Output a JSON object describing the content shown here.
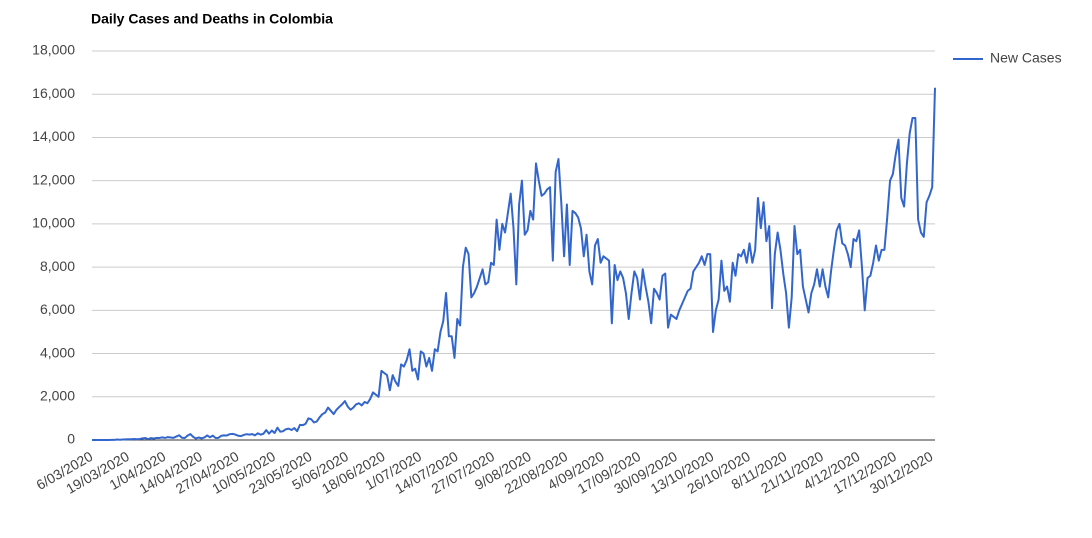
{
  "chart_data": {
    "type": "line",
    "title": "Daily Cases and Deaths in Colombia",
    "categories": [
      "6/03/2020",
      null,
      null,
      null,
      null,
      null,
      null,
      null,
      null,
      null,
      null,
      null,
      null,
      "19/03/2020",
      null,
      null,
      null,
      null,
      null,
      null,
      null,
      null,
      null,
      null,
      null,
      null,
      "1/04/2020",
      null,
      null,
      null,
      null,
      null,
      null,
      null,
      null,
      null,
      null,
      null,
      null,
      "14/04/2020",
      null,
      null,
      null,
      null,
      null,
      null,
      null,
      null,
      null,
      null,
      null,
      null,
      "27/04/2020",
      null,
      null,
      null,
      null,
      null,
      null,
      null,
      null,
      null,
      null,
      null,
      null,
      "10/05/2020",
      null,
      null,
      null,
      null,
      null,
      null,
      null,
      null,
      null,
      null,
      null,
      null,
      "23/05/2020",
      null,
      null,
      null,
      null,
      null,
      null,
      null,
      null,
      null,
      null,
      null,
      null,
      "5/06/2020",
      null,
      null,
      null,
      null,
      null,
      null,
      null,
      null,
      null,
      null,
      null,
      null,
      "18/06/2020",
      null,
      null,
      null,
      null,
      null,
      null,
      null,
      null,
      null,
      null,
      null,
      null,
      "1/07/2020",
      null,
      null,
      null,
      null,
      null,
      null,
      null,
      null,
      null,
      null,
      null,
      null,
      "14/07/2020",
      null,
      null,
      null,
      null,
      null,
      null,
      null,
      null,
      null,
      null,
      null,
      null,
      "27/07/2020",
      null,
      null,
      null,
      null,
      null,
      null,
      null,
      null,
      null,
      null,
      null,
      null,
      "9/08/2020",
      null,
      null,
      null,
      null,
      null,
      null,
      null,
      null,
      null,
      null,
      null,
      null,
      "22/08/2020",
      null,
      null,
      null,
      null,
      null,
      null,
      null,
      null,
      null,
      null,
      null,
      null,
      "4/09/2020",
      null,
      null,
      null,
      null,
      null,
      null,
      null,
      null,
      null,
      null,
      null,
      null,
      "17/09/2020",
      null,
      null,
      null,
      null,
      null,
      null,
      null,
      null,
      null,
      null,
      null,
      null,
      "30/09/2020",
      null,
      null,
      null,
      null,
      null,
      null,
      null,
      null,
      null,
      null,
      null,
      null,
      "13/10/2020",
      null,
      null,
      null,
      null,
      null,
      null,
      null,
      null,
      null,
      null,
      null,
      null,
      "26/10/2020",
      null,
      null,
      null,
      null,
      null,
      null,
      null,
      null,
      null,
      null,
      null,
      null,
      "8/11/2020",
      null,
      null,
      null,
      null,
      null,
      null,
      null,
      null,
      null,
      null,
      null,
      null,
      "21/11/2020",
      null,
      null,
      null,
      null,
      null,
      null,
      null,
      null,
      null,
      null,
      null,
      null,
      "4/12/2020",
      null,
      null,
      null,
      null,
      null,
      null,
      null,
      null,
      null,
      null,
      null,
      null,
      "17/12/2020",
      null,
      null,
      null,
      null,
      null,
      null,
      null,
      null,
      null,
      null,
      null,
      null,
      "30/12/2020",
      null
    ],
    "series": [
      {
        "name": "New Cases",
        "color": "#3366cc",
        "values": [
          1,
          0,
          0,
          0,
          0,
          3,
          3,
          6,
          7,
          21,
          11,
          22,
          28,
          37,
          34,
          48,
          36,
          45,
          74,
          92,
          36,
          88,
          69,
          96,
          95,
          120,
          96,
          134,
          118,
          100,
          159,
          221,
          106,
          94,
          203,
          274,
          145,
          71,
          116,
          76,
          117,
          213,
          126,
          200,
          94,
          101,
          196,
          213,
          208,
          269,
          283,
          252,
          199,
          180,
          235,
          269,
          250,
          273,
          215,
          311,
          249,
          289,
          458,
          295,
          437,
          324,
          572,
          384,
          406,
          499,
          525,
          462,
          552,
          409,
          700,
          686,
          750,
          1000,
          960,
          810,
          860,
          1050,
          1200,
          1270,
          1500,
          1350,
          1200,
          1400,
          1530,
          1650,
          1800,
          1550,
          1400,
          1500,
          1650,
          1700,
          1600,
          1760,
          1700,
          1900,
          2200,
          2100,
          2000,
          3200,
          3100,
          3000,
          2300,
          3000,
          2700,
          2500,
          3500,
          3400,
          3700,
          4200,
          3200,
          3300,
          2800,
          4100,
          4000,
          3400,
          3800,
          3200,
          4200,
          4100,
          5000,
          5500,
          6800,
          4800,
          4800,
          3800,
          5600,
          5300,
          8000,
          8900,
          8600,
          6600,
          6800,
          7100,
          7500,
          7900,
          7200,
          7300,
          8200,
          8100,
          10200,
          8800,
          10000,
          9600,
          10500,
          11400,
          9800,
          7200,
          10900,
          12000,
          9500,
          9700,
          10600,
          10200,
          12800,
          12000,
          11300,
          11400,
          11600,
          11700,
          8300,
          12400,
          13000,
          11000,
          8500,
          10900,
          8100,
          10600,
          10500,
          10300,
          9800,
          8500,
          9500,
          7800,
          7200,
          9000,
          9300,
          8200,
          8500,
          8400,
          8300,
          5400,
          8100,
          7400,
          7800,
          7500,
          6800,
          5600,
          6800,
          7800,
          7500,
          6500,
          7900,
          7100,
          6400,
          5400,
          7000,
          6800,
          6500,
          7600,
          7700,
          5200,
          5800,
          5700,
          5600,
          6000,
          6300,
          6600,
          6900,
          7000,
          7800,
          8000,
          8200,
          8500,
          8100,
          8600,
          8600,
          5000,
          6000,
          6500,
          8300,
          6900,
          7100,
          6400,
          8200,
          7600,
          8600,
          8500,
          8800,
          8200,
          9100,
          8200,
          8800,
          11200,
          9800,
          11000,
          9200,
          9900,
          6100,
          8600,
          9600,
          8800,
          7700,
          6800,
          5200,
          6600,
          9900,
          8600,
          8800,
          7100,
          6500,
          5900,
          6800,
          7200,
          7900,
          7100,
          7900,
          7100,
          6600,
          7800,
          8800,
          9700,
          10000,
          9100,
          9000,
          8600,
          8000,
          9300,
          9200,
          9700,
          8000,
          6000,
          7500,
          7600,
          8200,
          9000,
          8300,
          8800,
          8800,
          10300,
          12000,
          12300,
          13200,
          13900,
          11200,
          10800,
          12800,
          14200,
          14900,
          14900,
          10200,
          9600,
          9400,
          11000,
          11300,
          11700,
          16300
        ]
      }
    ],
    "ylim": [
      0,
      18000
    ],
    "yticks": [
      0,
      {
        "value": 2000,
        "label": "2,000"
      },
      {
        "value": 4000,
        "label": "4,000"
      },
      {
        "value": 6000,
        "label": "6,000"
      },
      {
        "value": 8000,
        "label": "8,000"
      },
      {
        "value": 10000,
        "label": "10,000"
      },
      {
        "value": 12000,
        "label": "12,000"
      },
      {
        "value": 14000,
        "label": "14,000"
      },
      {
        "value": 16000,
        "label": "16,000"
      },
      {
        "value": 18000,
        "label": "18,000"
      }
    ],
    "grid": true,
    "legend": "right"
  }
}
